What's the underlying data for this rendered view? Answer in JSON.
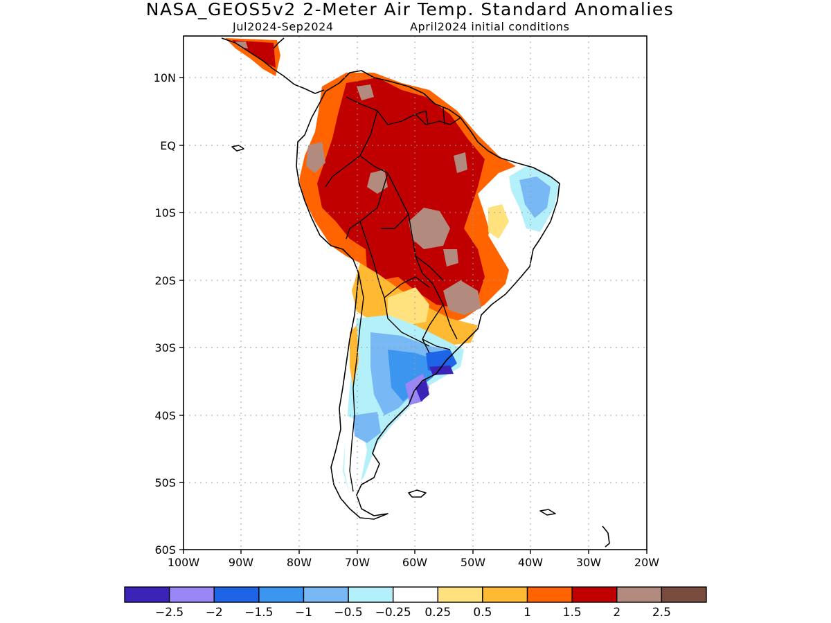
{
  "header": {
    "title": "NASA_GEOS5v2 2-Meter Air Temp. Standard Anomalies",
    "period": "Jul2024-Sep2024",
    "init": "April2024 initial conditions"
  },
  "map": {
    "lon_labels": [
      "100W",
      "90W",
      "80W",
      "70W",
      "60W",
      "50W",
      "40W",
      "30W",
      "20W"
    ],
    "lat_labels": [
      "10N",
      "EQ",
      "10S",
      "20S",
      "30S",
      "40S",
      "50S",
      "60S"
    ]
  },
  "colorbar": {
    "colors": [
      "#3b23b8",
      "#9a86f5",
      "#1e64e6",
      "#3c96f0",
      "#78b9f5",
      "#b4f0fa",
      "#ffffff",
      "#ffe17e",
      "#ffb932",
      "#ff6400",
      "#c00000",
      "#b38a7e",
      "#7a4c40"
    ],
    "labels": [
      "−2.5",
      "−2",
      "−1.5",
      "−1",
      "−0.5",
      "−0.25",
      "0.25",
      "0.5",
      "1",
      "1.5",
      "2",
      "2.5"
    ]
  }
}
